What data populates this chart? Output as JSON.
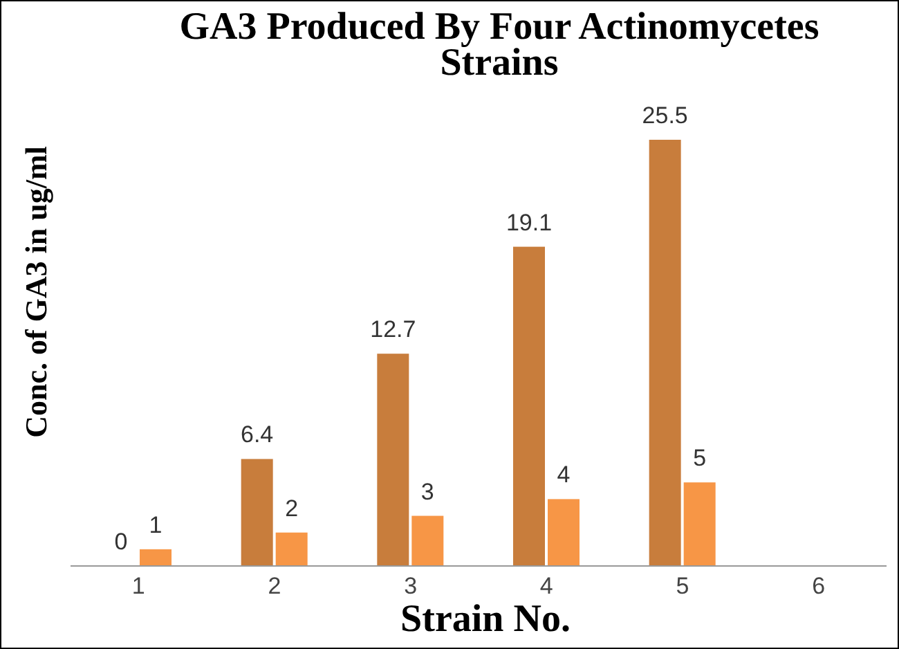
{
  "chart_data": {
    "type": "bar",
    "title": "GA3 Produced By Four Actinomycetes Strains",
    "xlabel": "Strain  No.",
    "ylabel": "Conc. of GA3 in ug/ml",
    "categories": [
      "1",
      "2",
      "3",
      "4",
      "5",
      "6"
    ],
    "series": [
      {
        "color": "#c87d3c",
        "values": [
          0,
          6.4,
          12.7,
          19.1,
          25.5,
          null
        ]
      },
      {
        "color": "#f79646",
        "values": [
          1,
          2,
          3,
          4,
          5,
          null
        ]
      }
    ],
    "data_labels": true,
    "grid": false,
    "legend": false,
    "tick_labels": "x"
  }
}
